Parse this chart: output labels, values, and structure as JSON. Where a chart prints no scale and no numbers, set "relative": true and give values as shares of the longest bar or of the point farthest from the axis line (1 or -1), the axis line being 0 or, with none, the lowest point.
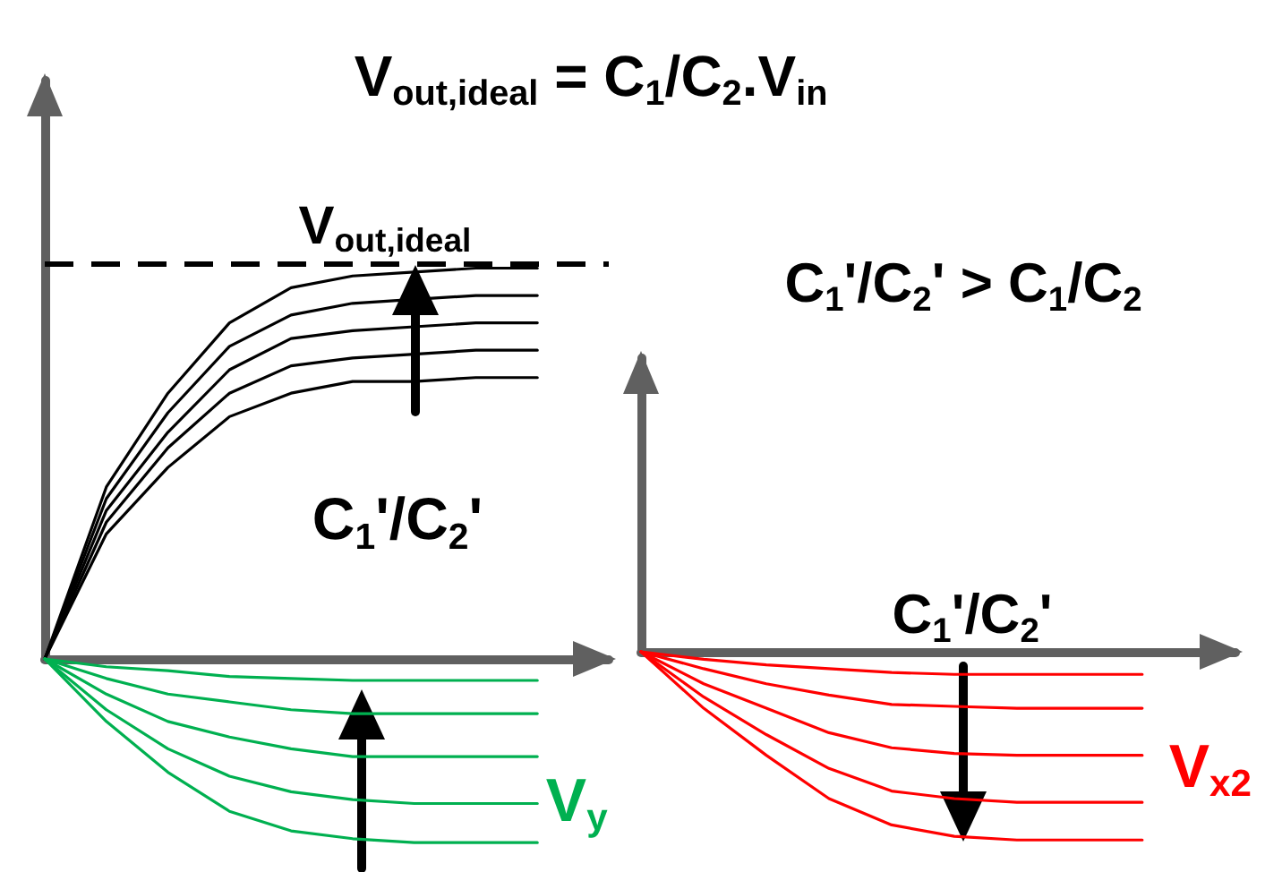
{
  "chart_data": [
    {
      "type": "line",
      "title": "V$_{out,ideal}$ = C$_{1}$/C$_{2}$.V$_{in}$",
      "relative": true,
      "tick_labels": false,
      "grid": false,
      "legend": false,
      "marker": "none",
      "line_style": "solid",
      "annotations": [
        "C$_{1}$'/C$_{2}$'"
      ],
      "ref_lines": [
        {
          "axis": "y",
          "value": 1.01,
          "label": "V$_{out,ideal}$",
          "color": "#000000",
          "line_style": "dashed"
        }
      ],
      "categories": [
        null,
        null,
        null,
        null,
        null,
        null,
        null,
        null,
        null
      ],
      "series": [
        {
          "color": "#000000",
          "values": [
            0,
            0.44,
            0.68,
            0.86,
            0.95,
            0.98,
            0.99,
            1,
            1
          ]
        },
        {
          "color": "#000000",
          "values": [
            0,
            0.41,
            0.63,
            0.8,
            0.88,
            0.91,
            0.92,
            0.93,
            0.93
          ]
        },
        {
          "color": "#000000",
          "values": [
            0,
            0.38,
            0.58,
            0.74,
            0.82,
            0.84,
            0.85,
            0.86,
            0.86
          ]
        },
        {
          "color": "#000000",
          "values": [
            0,
            0.35,
            0.54,
            0.68,
            0.75,
            0.77,
            0.78,
            0.79,
            0.79
          ]
        },
        {
          "color": "#000000",
          "values": [
            0,
            0.32,
            0.49,
            0.62,
            0.68,
            0.71,
            0.71,
            0.72,
            0.72
          ]
        },
        {
          "color": "#00b050",
          "values": [
            0,
            -0.02,
            -0.03,
            -0.045,
            -0.05,
            -0.055,
            -0.055,
            -0.055,
            -0.055
          ]
        },
        {
          "color": "#00b050",
          "values": [
            0,
            -0.05,
            -0.09,
            -0.11,
            -0.13,
            -0.14,
            -0.14,
            -0.14,
            -0.14
          ]
        },
        {
          "color": "#00b050",
          "values": [
            0,
            -0.09,
            -0.16,
            -0.2,
            -0.23,
            -0.25,
            -0.25,
            -0.25,
            -0.25
          ]
        },
        {
          "name": "V$_{y}$",
          "color": "#00b050",
          "values": [
            0,
            -0.13,
            -0.23,
            -0.3,
            -0.34,
            -0.36,
            -0.37,
            -0.37,
            -0.37
          ]
        },
        {
          "color": "#00b050",
          "values": [
            0,
            -0.16,
            -0.29,
            -0.39,
            -0.44,
            -0.46,
            -0.47,
            -0.47,
            -0.47
          ]
        }
      ]
    },
    {
      "type": "line",
      "relative": true,
      "tick_labels": false,
      "grid": false,
      "legend": false,
      "marker": "none",
      "line_style": "solid",
      "annotations": [
        "C$_{1}$'/C$_{2}$' > C$_{1}$/C$_{2}$",
        "C$_{1}$'/C$_{2}$'"
      ],
      "categories": [
        null,
        null,
        null,
        null,
        null,
        null,
        null,
        null,
        null
      ],
      "series": [
        {
          "color": "#ff0000",
          "values": [
            0,
            -0.04,
            -0.07,
            -0.09,
            -0.11,
            -0.12,
            -0.12,
            -0.12,
            -0.12
          ]
        },
        {
          "color": "#ff0000",
          "values": [
            0,
            -0.09,
            -0.17,
            -0.23,
            -0.28,
            -0.29,
            -0.3,
            -0.3,
            -0.3
          ]
        },
        {
          "color": "#ff0000",
          "values": [
            0,
            -0.17,
            -0.3,
            -0.43,
            -0.51,
            -0.54,
            -0.55,
            -0.55,
            -0.55
          ]
        },
        {
          "name": "V$_{x2}$",
          "color": "#ff0000",
          "values": [
            0,
            -0.24,
            -0.44,
            -0.62,
            -0.74,
            -0.78,
            -0.8,
            -0.8,
            -0.8
          ]
        },
        {
          "color": "#ff0000",
          "values": [
            0,
            -0.3,
            -0.55,
            -0.78,
            -0.92,
            -0.98,
            -1,
            -1,
            -1
          ]
        }
      ]
    }
  ]
}
